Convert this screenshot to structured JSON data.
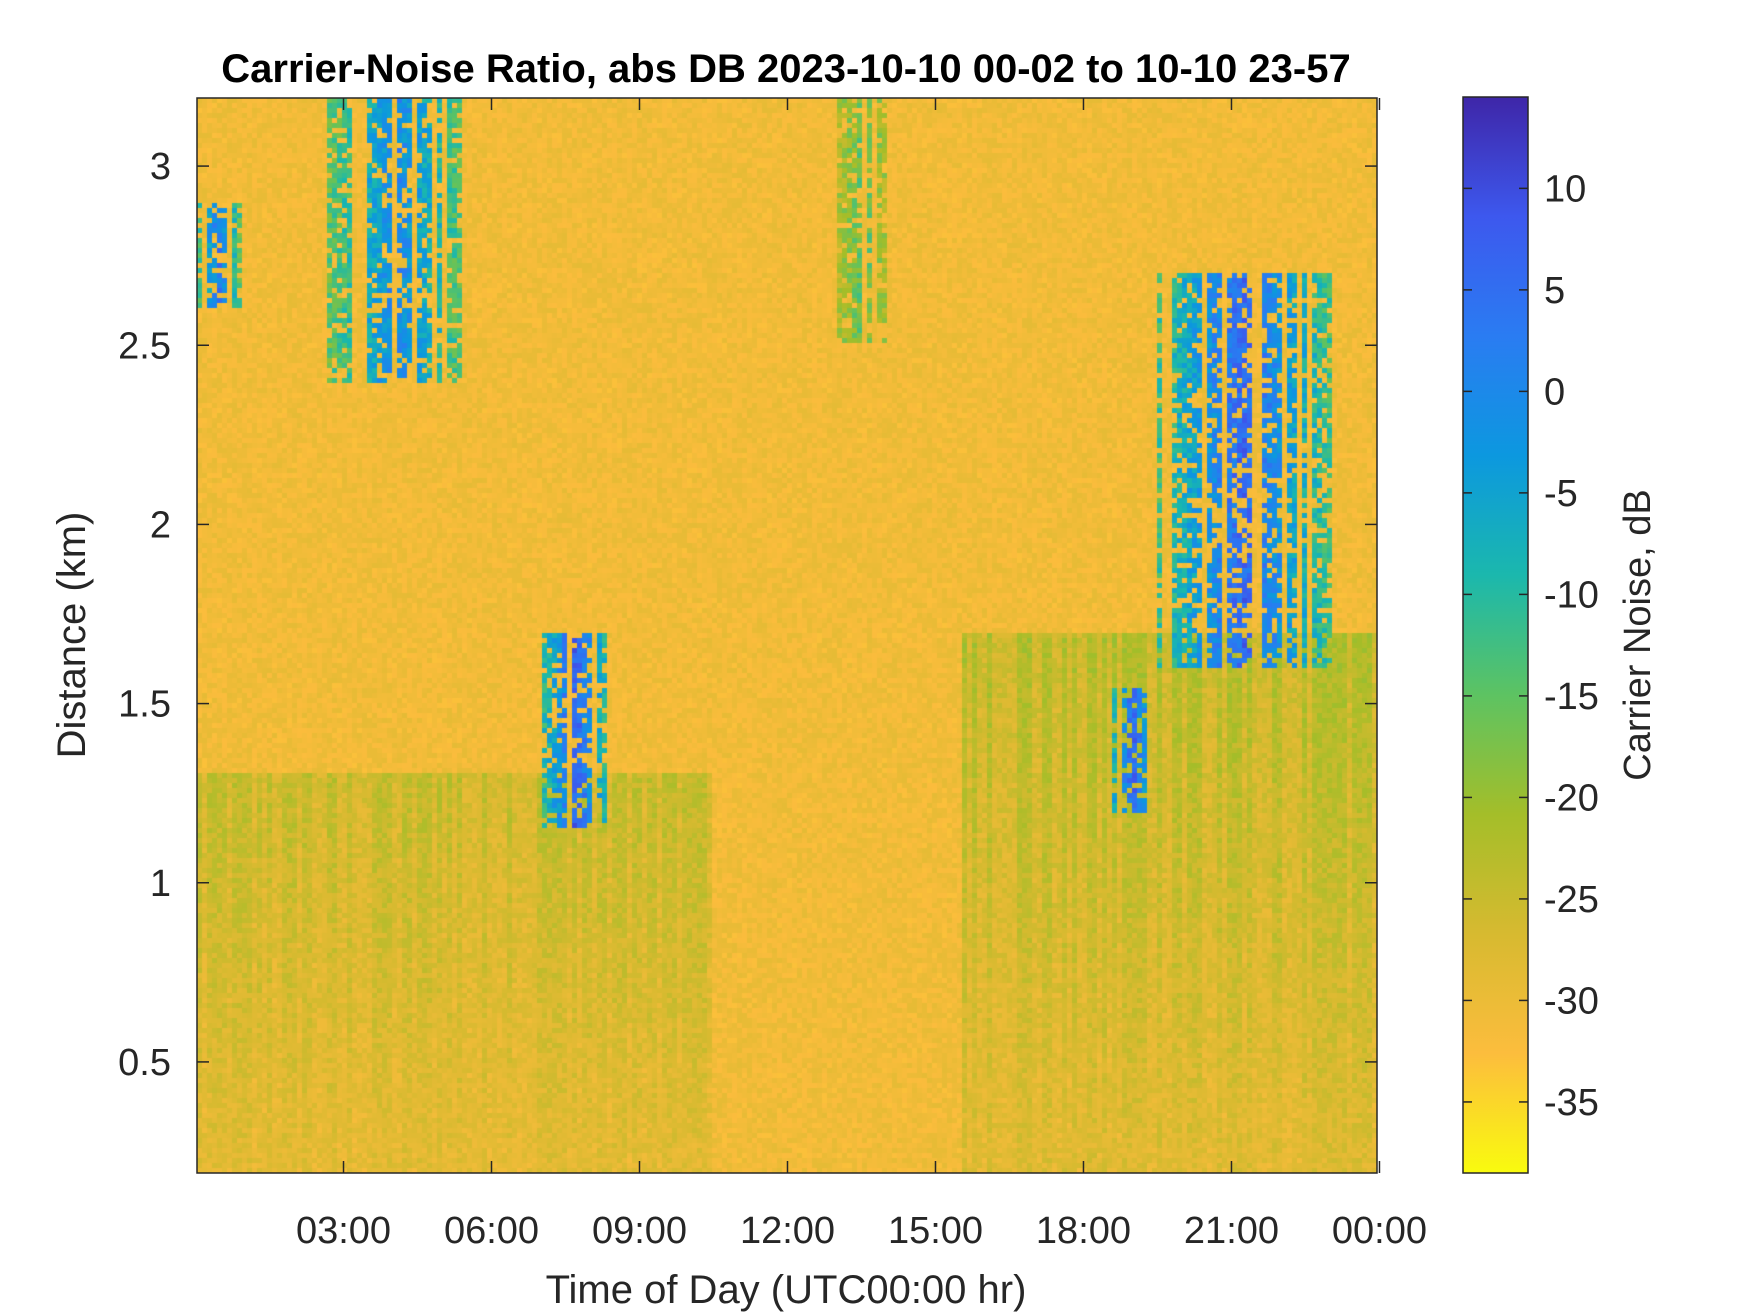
{
  "chart_data": {
    "type": "heatmap",
    "title": "Carrier-Noise Ratio, abs DB 2023-10-10 00-02 to 10-10 23-57",
    "xlabel": "Time of Day (UTC00:00 hr)",
    "ylabel": "Distance (km)",
    "x_ticks": [
      "03:00",
      "06:00",
      "09:00",
      "12:00",
      "15:00",
      "18:00",
      "21:00",
      "00:00"
    ],
    "x_tick_hours": [
      3,
      6,
      9,
      12,
      15,
      18,
      21,
      24
    ],
    "xlim_hours": [
      0.03,
      23.95
    ],
    "y_ticks": [
      "0.5",
      "1",
      "1.5",
      "2",
      "2.5",
      "3"
    ],
    "y_tick_values": [
      0.5,
      1,
      1.5,
      2,
      2.5,
      3
    ],
    "ylim_km": [
      0.19,
      3.19
    ],
    "colorbar": {
      "label": "Carrier Noise, dB",
      "ticks": [
        "10",
        "5",
        "0",
        "-5",
        "-10",
        "-15",
        "-20",
        "-25",
        "-30",
        "-35"
      ],
      "tick_values": [
        10,
        5,
        0,
        -5,
        -10,
        -15,
        -20,
        -25,
        -30,
        -35
      ],
      "clim": [
        -38.5,
        14.5
      ],
      "colormap": "parula (reversed)",
      "colors": [
        "#f9fb0e",
        "#fcbd3d",
        "#d7ba30",
        "#a4be29",
        "#5dc362",
        "#1bb8ad",
        "#0c98df",
        "#2a7cf2",
        "#3d58ee",
        "#3e26a8"
      ]
    },
    "features": [
      {
        "kind": "background noise",
        "value_db": -31
      },
      {
        "kind": "boundary layer",
        "x_hours": [
          0.03,
          10.5
        ],
        "y_km": [
          0.19,
          1.3
        ],
        "value_db": -24
      },
      {
        "kind": "boundary layer",
        "x_hours": [
          15.5,
          23.95
        ],
        "y_km": [
          0.19,
          1.7
        ],
        "value_db": -22
      },
      {
        "kind": "cloud layer",
        "x_hours": [
          0.03,
          0.9
        ],
        "y_km": [
          2.6,
          2.9
        ],
        "value_db": 3
      },
      {
        "kind": "cloud layer",
        "x_hours": [
          2.7,
          5.5
        ],
        "y_km": [
          2.4,
          3.19
        ],
        "value_db": 0
      },
      {
        "kind": "cloud layer",
        "x_hours": [
          7.0,
          8.4
        ],
        "y_km": [
          1.15,
          1.7
        ],
        "value_db": 7
      },
      {
        "kind": "cloud layer",
        "x_hours": [
          18.5,
          19.5
        ],
        "y_km": [
          1.2,
          1.55
        ],
        "value_db": 7
      },
      {
        "kind": "cloud layer",
        "x_hours": [
          19.5,
          23.0
        ],
        "y_km": [
          1.6,
          2.7
        ],
        "value_db": 6
      },
      {
        "kind": "cloud layer",
        "x_hours": [
          13.0,
          14.1
        ],
        "y_km": [
          2.5,
          3.19
        ],
        "value_db": -15
      }
    ]
  }
}
